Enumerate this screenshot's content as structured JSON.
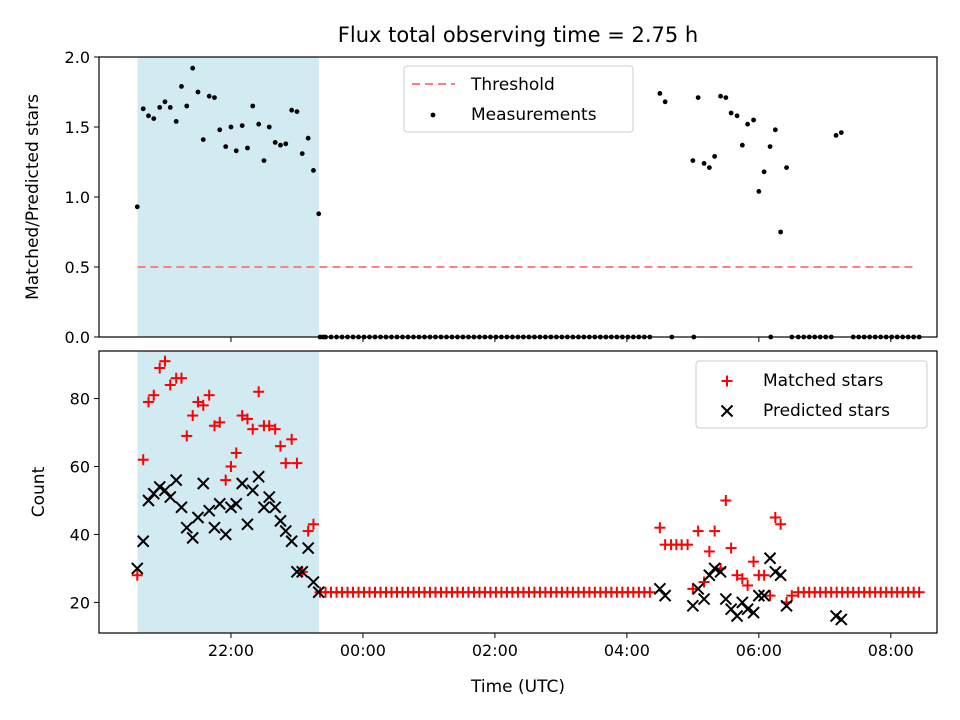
{
  "title": "Flux total observing time = 2.75 h",
  "xlabel": "Time (UTC)",
  "colors": {
    "shade": "#add8e6",
    "threshold": "#ff7f7f",
    "measure": "#000000",
    "matched": "#ff0000",
    "predicted": "#000000"
  },
  "chart_data": [
    {
      "type": "scatter",
      "ylabel": "Matched/Predicted stars",
      "ylim": [
        0,
        2.0
      ],
      "yticks": [
        "0.0",
        "0.5",
        "1.0",
        "1.5",
        "2.0"
      ],
      "xlim_hours": [
        20.0,
        32.7
      ],
      "shaded_span_hours": [
        20.583,
        23.333
      ],
      "legend": [
        "Threshold",
        "Measurements"
      ],
      "legend_position": "upper-center",
      "threshold": {
        "value": 0.5,
        "x_hours": [
          20.583,
          32.367
        ]
      },
      "series": [
        {
          "name": "Measurements",
          "x": [
            20.58,
            20.67,
            20.75,
            20.83,
            20.92,
            21.0,
            21.08,
            21.17,
            21.25,
            21.33,
            21.42,
            21.5,
            21.58,
            21.67,
            21.75,
            21.83,
            21.92,
            22.0,
            22.08,
            22.17,
            22.25,
            22.33,
            22.42,
            22.5,
            22.58,
            22.67,
            22.75,
            22.83,
            22.92,
            23.0,
            23.08,
            23.17,
            23.25,
            23.33,
            23.4,
            28.5,
            28.58,
            29.0,
            29.08,
            29.17,
            29.25,
            29.33,
            29.42,
            29.5,
            29.58,
            29.67,
            29.75,
            29.83,
            29.92,
            30.0,
            30.08,
            30.17,
            30.25,
            30.33,
            30.42,
            30.5,
            31.17,
            31.25
          ],
          "y": [
            0.93,
            1.63,
            1.58,
            1.56,
            1.64,
            1.68,
            1.64,
            1.54,
            1.79,
            1.65,
            1.92,
            1.75,
            1.41,
            1.72,
            1.71,
            1.48,
            1.36,
            1.5,
            1.33,
            1.51,
            1.35,
            1.65,
            1.52,
            1.26,
            1.5,
            1.39,
            1.37,
            1.38,
            1.62,
            1.61,
            1.31,
            1.42,
            1.19,
            0.88,
            0.0,
            1.74,
            1.68,
            1.26,
            1.71,
            1.24,
            1.21,
            1.29,
            1.72,
            1.71,
            1.6,
            1.58,
            1.37,
            1.52,
            1.55,
            1.04,
            1.18,
            1.36,
            1.48,
            0.75,
            1.21,
            0.0,
            1.44,
            1.46
          ]
        },
        {
          "name": "zero-measurements",
          "x_range_hours": [
            23.35,
            32.45
          ],
          "gaps_hours": [
            [
              28.42,
              28.65
            ],
            [
              28.75,
              29.0
            ],
            [
              29.05,
              30.15
            ],
            [
              30.2,
              30.55
            ],
            [
              31.1,
              31.2
            ],
            [
              31.25,
              31.4
            ]
          ],
          "step_hours": 0.0833,
          "y": 0.0
        }
      ]
    },
    {
      "type": "scatter",
      "ylabel": "Count",
      "ylim": [
        11,
        94
      ],
      "yticks": [
        "20",
        "40",
        "60",
        "80"
      ],
      "xticks": [
        "22:00",
        "00:00",
        "02:00",
        "04:00",
        "06:00",
        "08:00"
      ],
      "xtick_hours": [
        22,
        24,
        26,
        28,
        30,
        32
      ],
      "legend": [
        "Matched stars",
        "Predicted stars"
      ],
      "legend_position": "upper-right",
      "series": [
        {
          "name": "Matched stars",
          "x": [
            20.58,
            20.67,
            20.75,
            20.83,
            20.92,
            21.0,
            21.08,
            21.17,
            21.25,
            21.33,
            21.42,
            21.5,
            21.58,
            21.67,
            21.75,
            21.83,
            21.92,
            22.0,
            22.08,
            22.17,
            22.25,
            22.33,
            22.42,
            22.5,
            22.58,
            22.67,
            22.75,
            22.83,
            22.92,
            23.0,
            23.08,
            23.17,
            23.25,
            28.5,
            28.58,
            28.67,
            28.75,
            28.83,
            28.92,
            29.0,
            29.08,
            29.17,
            29.25,
            29.33,
            29.42,
            29.5,
            29.58,
            29.67,
            29.75,
            29.83,
            29.92,
            30.0,
            30.08,
            30.17,
            30.25,
            30.33,
            30.42,
            30.5
          ],
          "y": [
            28,
            62,
            79,
            81,
            89,
            91,
            84,
            86,
            86,
            69,
            75,
            79,
            78,
            81,
            72,
            73,
            56,
            60,
            64,
            75,
            74,
            71,
            82,
            72,
            72,
            71,
            66,
            61,
            68,
            61,
            29,
            41,
            43,
            42,
            37,
            37,
            37,
            37,
            37,
            24,
            41,
            26,
            35,
            41,
            30,
            50,
            36,
            28,
            27,
            25,
            32,
            28,
            28,
            22,
            45,
            43,
            20,
            22
          ]
        },
        {
          "name": "Predicted stars",
          "x": [
            20.58,
            20.67,
            20.75,
            20.83,
            20.92,
            21.0,
            21.08,
            21.17,
            21.25,
            21.33,
            21.42,
            21.5,
            21.58,
            21.67,
            21.75,
            21.83,
            21.92,
            22.0,
            22.08,
            22.17,
            22.25,
            22.33,
            22.42,
            22.5,
            22.58,
            22.67,
            22.75,
            22.83,
            22.92,
            23.0,
            23.08,
            23.17,
            23.25,
            23.33,
            28.5,
            28.58,
            29.0,
            29.08,
            29.17,
            29.25,
            29.33,
            29.42,
            29.5,
            29.58,
            29.67,
            29.75,
            29.83,
            29.92,
            30.0,
            30.08,
            30.17,
            30.25,
            30.33,
            30.42,
            31.17,
            31.25
          ],
          "y": [
            30,
            38,
            50,
            52,
            54,
            53,
            51,
            56,
            48,
            42,
            39,
            45,
            55,
            47,
            42,
            49,
            40,
            48,
            49,
            55,
            43,
            53,
            57,
            48,
            51,
            48,
            44,
            41,
            38,
            29,
            29,
            36,
            26,
            23,
            24,
            22,
            19,
            24,
            21,
            28,
            30,
            29,
            21,
            18,
            16,
            20,
            18,
            17,
            22,
            22,
            33,
            29,
            28,
            19,
            16,
            15
          ]
        },
        {
          "name": "zero-matched",
          "x_range_hours": [
            23.35,
            32.45
          ],
          "gaps_hours": [
            [
              28.42,
              30.55
            ]
          ],
          "step_hours": 0.0833,
          "y": 23
        }
      ]
    }
  ]
}
